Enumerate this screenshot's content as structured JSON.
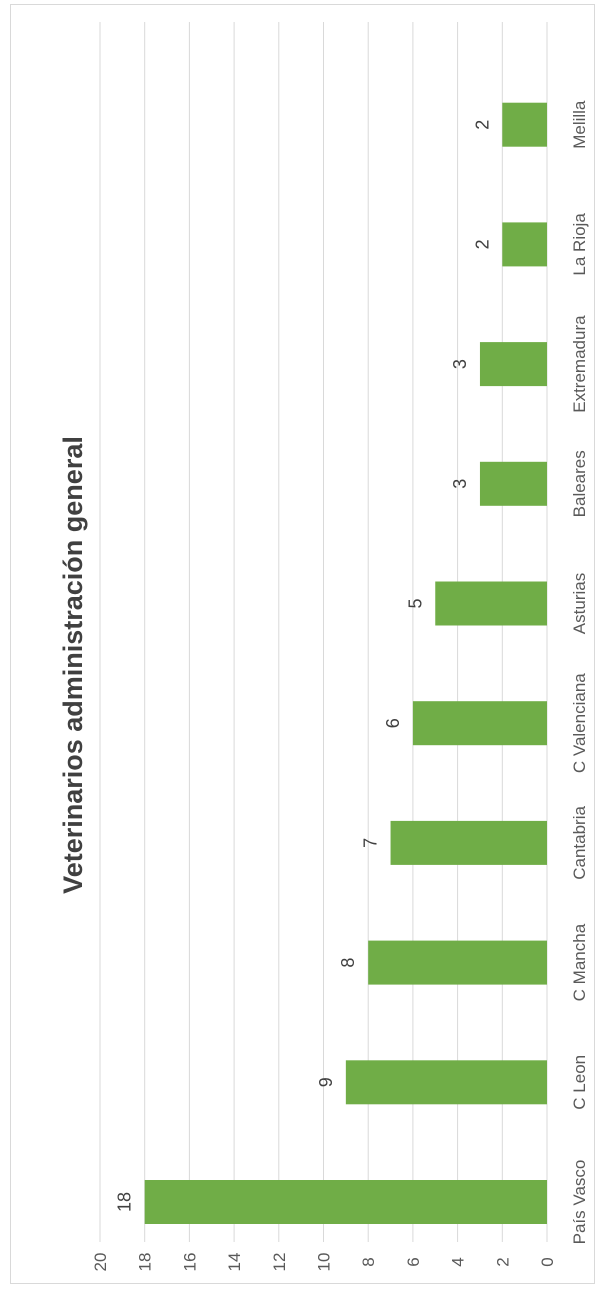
{
  "chart_data": {
    "type": "bar",
    "title": "Veterinarios administración general",
    "categories": [
      "País Vasco",
      "C Leon",
      "C Mancha",
      "Cantabria",
      "C Valenciana",
      "Asturias",
      "Baleares",
      "Extremadura",
      "La Rioja",
      "Melilla"
    ],
    "values": [
      18,
      9,
      8,
      7,
      6,
      5,
      3,
      3,
      2,
      2
    ],
    "ylim": [
      0,
      20
    ],
    "yticks": [
      0,
      2,
      4,
      6,
      8,
      10,
      12,
      14,
      16,
      18,
      20
    ],
    "grid": true,
    "bar_color": "#70ad47",
    "grid_color": "#d9d9d9",
    "data_labels": true,
    "orientation": "rotated-90-ccw"
  }
}
